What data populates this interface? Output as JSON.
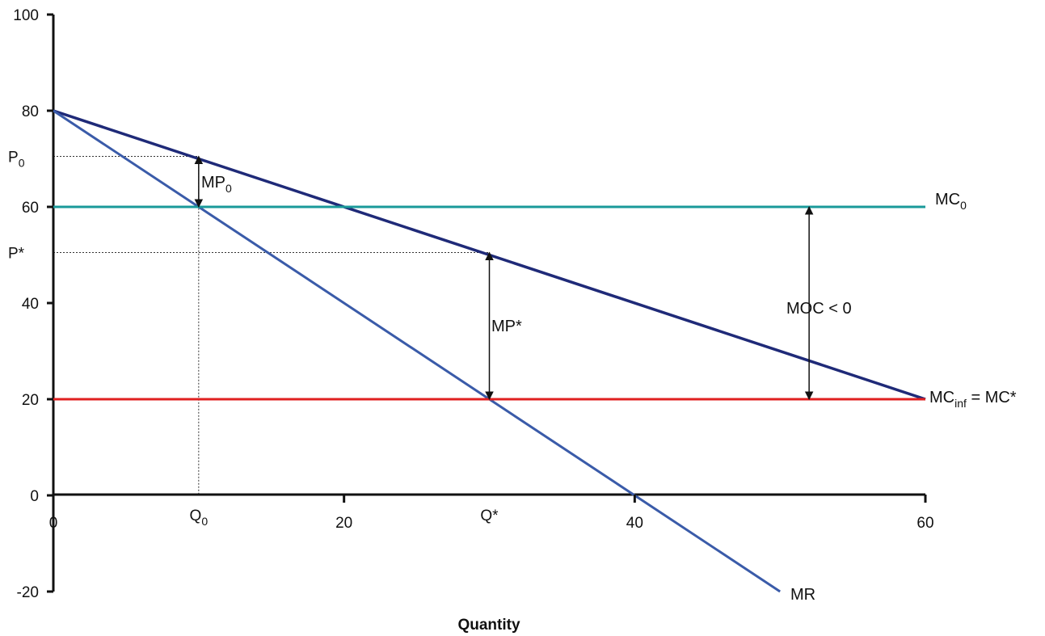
{
  "chart_data": {
    "type": "line",
    "title": "",
    "xlabel": "Quantity",
    "ylabel": "",
    "xlim": [
      0,
      60
    ],
    "ylim": [
      -20,
      100
    ],
    "grid": false,
    "legend": "none",
    "x_ticks": [
      {
        "value": 0,
        "label": "0"
      },
      {
        "value": 10,
        "label": "Q",
        "sub": "0"
      },
      {
        "value": 20,
        "label": "20"
      },
      {
        "value": 30,
        "label": "Q*"
      },
      {
        "value": 40,
        "label": "40"
      },
      {
        "value": 60,
        "label": "60"
      }
    ],
    "y_ticks": [
      {
        "value": 100,
        "label": "100"
      },
      {
        "value": 80,
        "label": "80"
      },
      {
        "value": 70.5,
        "label": "P",
        "sub": "0"
      },
      {
        "value": 60,
        "label": "60"
      },
      {
        "value": 50.5,
        "label": "P*"
      },
      {
        "value": 40,
        "label": "40"
      },
      {
        "value": 20,
        "label": "20"
      },
      {
        "value": 0,
        "label": "0"
      },
      {
        "value": -20,
        "label": "-20"
      }
    ],
    "series": [
      {
        "key": "demand",
        "points": [
          [
            0,
            80
          ],
          [
            60,
            20
          ]
        ],
        "color": "#1f2a78"
      },
      {
        "key": "mr",
        "name": "MR",
        "points": [
          [
            0,
            80
          ],
          [
            50,
            -20
          ]
        ],
        "color": "#3a5ba9"
      },
      {
        "key": "mc0",
        "name": "MC",
        "name_sub": "0",
        "points": [
          [
            0,
            60
          ],
          [
            60,
            60
          ]
        ],
        "color": "#1a9a9a"
      },
      {
        "key": "mcinf",
        "name": "MC",
        "name_sub": "inf",
        "name_suffix": " = MC*",
        "points": [
          [
            0,
            20
          ],
          [
            60,
            20
          ]
        ],
        "color": "#e02020"
      }
    ],
    "guides": [
      {
        "points": [
          [
            0,
            70.5
          ],
          [
            10,
            70.5
          ],
          [
            10,
            0
          ]
        ]
      },
      {
        "points": [
          [
            0,
            50.5
          ],
          [
            30,
            50.5
          ],
          [
            30,
            20
          ]
        ]
      }
    ],
    "annotations": [
      {
        "key": "mp0",
        "label": "MP",
        "sub": "0",
        "arrow_from": [
          10,
          60
        ],
        "arrow_to": [
          10,
          70.5
        ]
      },
      {
        "key": "mpstar",
        "label": "MP*",
        "arrow_from": [
          30,
          20
        ],
        "arrow_to": [
          30,
          50.5
        ]
      },
      {
        "key": "moc",
        "label": "MOC < 0",
        "arrow_from": [
          52,
          20
        ],
        "arrow_to": [
          52,
          60
        ]
      }
    ]
  }
}
